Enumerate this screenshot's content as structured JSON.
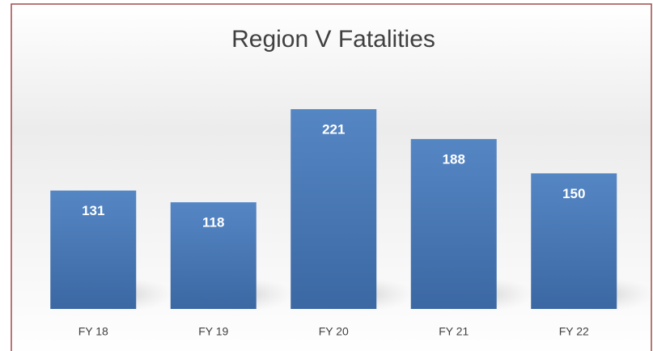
{
  "chart_data": {
    "type": "bar",
    "title": "Region V Fatalities",
    "categories": [
      "FY 18",
      "FY 19",
      "FY 20",
      "FY 21",
      "FY 22"
    ],
    "values": [
      131,
      118,
      221,
      188,
      150
    ],
    "color": "#4a7ab8"
  }
}
